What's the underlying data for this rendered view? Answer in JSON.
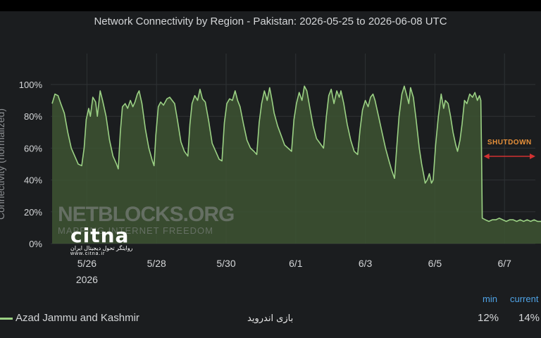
{
  "chart_data": {
    "type": "area",
    "title": "Network Connectivity by Region - Pakistan: 2026-05-25 to 2026-06-08 UTC",
    "ylabel": "Connectivity (normalized)",
    "xlabel": "",
    "yticks": [
      "0%",
      "20%",
      "40%",
      "60%",
      "80%",
      "100%"
    ],
    "ylim": [
      0,
      100
    ],
    "xlim": [
      0,
      14.88
    ],
    "xticks": [
      {
        "day": 1,
        "label": "5/26"
      },
      {
        "day": 3,
        "label": "5/28"
      },
      {
        "day": 5,
        "label": "5/30"
      },
      {
        "day": 7,
        "label": "6/1"
      },
      {
        "day": 9,
        "label": "6/3"
      },
      {
        "day": 11,
        "label": "6/5"
      },
      {
        "day": 13,
        "label": "6/7"
      }
    ],
    "xlabel_year": "2026",
    "x_unit": "days from 2026-05-25 00:00 UTC",
    "grid": true,
    "series": [
      {
        "name": "Azad Jammu and Kashmir",
        "color": "#9bd184",
        "points": [
          [
            0.0,
            88
          ],
          [
            0.08,
            94
          ],
          [
            0.17,
            93
          ],
          [
            0.25,
            88
          ],
          [
            0.35,
            82
          ],
          [
            0.45,
            70
          ],
          [
            0.55,
            60
          ],
          [
            0.65,
            55
          ],
          [
            0.75,
            50
          ],
          [
            0.85,
            49
          ],
          [
            0.92,
            60
          ],
          [
            0.98,
            78
          ],
          [
            1.05,
            85
          ],
          [
            1.1,
            80
          ],
          [
            1.17,
            92
          ],
          [
            1.25,
            89
          ],
          [
            1.3,
            80
          ],
          [
            1.38,
            96
          ],
          [
            1.45,
            90
          ],
          [
            1.55,
            80
          ],
          [
            1.65,
            65
          ],
          [
            1.75,
            55
          ],
          [
            1.85,
            50
          ],
          [
            1.9,
            47
          ],
          [
            1.96,
            70
          ],
          [
            2.02,
            86
          ],
          [
            2.1,
            88
          ],
          [
            2.17,
            85
          ],
          [
            2.25,
            90
          ],
          [
            2.32,
            86
          ],
          [
            2.38,
            89
          ],
          [
            2.45,
            94
          ],
          [
            2.5,
            96
          ],
          [
            2.58,
            88
          ],
          [
            2.68,
            72
          ],
          [
            2.78,
            60
          ],
          [
            2.88,
            52
          ],
          [
            2.93,
            49
          ],
          [
            2.98,
            68
          ],
          [
            3.05,
            86
          ],
          [
            3.12,
            89
          ],
          [
            3.2,
            87
          ],
          [
            3.3,
            91
          ],
          [
            3.38,
            92
          ],
          [
            3.45,
            90
          ],
          [
            3.52,
            88
          ],
          [
            3.6,
            78
          ],
          [
            3.7,
            64
          ],
          [
            3.8,
            58
          ],
          [
            3.9,
            55
          ],
          [
            3.96,
            75
          ],
          [
            4.02,
            88
          ],
          [
            4.1,
            93
          ],
          [
            4.18,
            90
          ],
          [
            4.25,
            97
          ],
          [
            4.32,
            91
          ],
          [
            4.4,
            89
          ],
          [
            4.5,
            77
          ],
          [
            4.6,
            63
          ],
          [
            4.7,
            58
          ],
          [
            4.8,
            53
          ],
          [
            4.88,
            52
          ],
          [
            4.95,
            76
          ],
          [
            5.02,
            88
          ],
          [
            5.1,
            91
          ],
          [
            5.18,
            90
          ],
          [
            5.26,
            96
          ],
          [
            5.33,
            90
          ],
          [
            5.4,
            86
          ],
          [
            5.5,
            75
          ],
          [
            5.6,
            65
          ],
          [
            5.7,
            60
          ],
          [
            5.8,
            58
          ],
          [
            5.88,
            56
          ],
          [
            5.95,
            76
          ],
          [
            6.02,
            88
          ],
          [
            6.1,
            96
          ],
          [
            6.18,
            90
          ],
          [
            6.25,
            98
          ],
          [
            6.32,
            90
          ],
          [
            6.38,
            82
          ],
          [
            6.48,
            74
          ],
          [
            6.58,
            68
          ],
          [
            6.68,
            62
          ],
          [
            6.78,
            60
          ],
          [
            6.88,
            58
          ],
          [
            6.95,
            78
          ],
          [
            7.02,
            88
          ],
          [
            7.1,
            95
          ],
          [
            7.18,
            90
          ],
          [
            7.25,
            99
          ],
          [
            7.32,
            96
          ],
          [
            7.4,
            86
          ],
          [
            7.5,
            74
          ],
          [
            7.6,
            66
          ],
          [
            7.7,
            63
          ],
          [
            7.8,
            60
          ],
          [
            7.88,
            80
          ],
          [
            7.95,
            93
          ],
          [
            8.02,
            97
          ],
          [
            8.1,
            88
          ],
          [
            8.18,
            96
          ],
          [
            8.25,
            92
          ],
          [
            8.3,
            96
          ],
          [
            8.38,
            88
          ],
          [
            8.48,
            75
          ],
          [
            8.58,
            65
          ],
          [
            8.68,
            58
          ],
          [
            8.78,
            56
          ],
          [
            8.85,
            72
          ],
          [
            8.92,
            84
          ],
          [
            9.0,
            90
          ],
          [
            9.08,
            86
          ],
          [
            9.15,
            92
          ],
          [
            9.22,
            94
          ],
          [
            9.28,
            90
          ],
          [
            9.38,
            80
          ],
          [
            9.48,
            70
          ],
          [
            9.58,
            60
          ],
          [
            9.68,
            52
          ],
          [
            9.76,
            46
          ],
          [
            9.84,
            41
          ],
          [
            9.9,
            60
          ],
          [
            9.97,
            80
          ],
          [
            10.05,
            94
          ],
          [
            10.12,
            99
          ],
          [
            10.18,
            94
          ],
          [
            10.25,
            88
          ],
          [
            10.3,
            98
          ],
          [
            10.38,
            92
          ],
          [
            10.46,
            78
          ],
          [
            10.55,
            60
          ],
          [
            10.62,
            50
          ],
          [
            10.68,
            43
          ],
          [
            10.72,
            38
          ],
          [
            10.78,
            40
          ],
          [
            10.84,
            44
          ],
          [
            10.9,
            38
          ],
          [
            10.95,
            40
          ],
          [
            11.02,
            62
          ],
          [
            11.1,
            80
          ],
          [
            11.18,
            94
          ],
          [
            11.25,
            85
          ],
          [
            11.3,
            90
          ],
          [
            11.38,
            88
          ],
          [
            11.45,
            80
          ],
          [
            11.52,
            70
          ],
          [
            11.6,
            62
          ],
          [
            11.65,
            58
          ],
          [
            11.72,
            65
          ],
          [
            11.78,
            75
          ],
          [
            11.85,
            90
          ],
          [
            11.92,
            88
          ],
          [
            12.0,
            94
          ],
          [
            12.08,
            92
          ],
          [
            12.15,
            95
          ],
          [
            12.22,
            90
          ],
          [
            12.28,
            93
          ],
          [
            12.32,
            90
          ],
          [
            12.34,
            57
          ],
          [
            12.36,
            16
          ],
          [
            12.45,
            15
          ],
          [
            12.55,
            14
          ],
          [
            12.65,
            15
          ],
          [
            12.75,
            15
          ],
          [
            12.85,
            16
          ],
          [
            12.95,
            15
          ],
          [
            13.05,
            14
          ],
          [
            13.15,
            15
          ],
          [
            13.25,
            15
          ],
          [
            13.35,
            14
          ],
          [
            13.45,
            15
          ],
          [
            13.55,
            14
          ],
          [
            13.65,
            15
          ],
          [
            13.75,
            14
          ],
          [
            13.85,
            15
          ],
          [
            13.95,
            14
          ],
          [
            14.05,
            14
          ],
          [
            14.15,
            15
          ],
          [
            14.25,
            14
          ],
          [
            14.35,
            14
          ],
          [
            14.45,
            15
          ],
          [
            14.55,
            13
          ],
          [
            14.65,
            12
          ],
          [
            14.75,
            14
          ],
          [
            14.82,
            14
          ]
        ]
      }
    ],
    "annotation": {
      "label": "SHUTDOWN",
      "x_start": 12.36,
      "x_end": 14.88,
      "y": 54,
      "color": "#e8913a",
      "arrow_color": "#d23232"
    },
    "legend": {
      "placement": "bottom",
      "min_header": "min",
      "current_header": "current",
      "min_value": "12%",
      "current_value": "14%"
    }
  },
  "watermark": {
    "brand": "NETBLOCKS.ORG",
    "tagline": "MAPPING INTERNET FREEDOM"
  },
  "overlay_logo": {
    "name": "citna",
    "subtitle": "روایتگر تحول دیجیتال ایران",
    "url": "www.citna.ir"
  },
  "caption": "بازی اندروید",
  "colors": {
    "background": "#1b1d1f",
    "grid": "#2f3235",
    "text": "#d4d6d8",
    "series": "#9bd184",
    "fill": "#3d5332",
    "accent_blue": "#4fa3e6"
  }
}
